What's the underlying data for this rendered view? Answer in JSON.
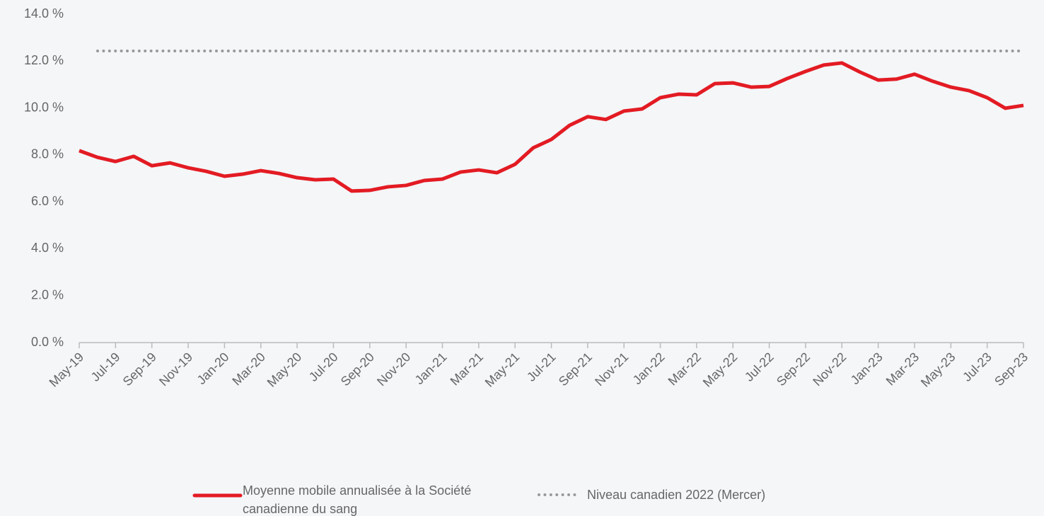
{
  "chart_data": {
    "type": "line",
    "categories": [
      "May-19",
      null,
      "Jul-19",
      null,
      "Sep-19",
      null,
      "Nov-19",
      null,
      "Jan-20",
      null,
      "Mar-20",
      null,
      "May-20",
      null,
      "Jul-20",
      null,
      "Sep-20",
      null,
      "Nov-20",
      null,
      "Jan-21",
      null,
      "Mar-21",
      null,
      "May-21",
      null,
      "Jul-21",
      null,
      "Sep-21",
      null,
      "Nov-21",
      null,
      "Jan-22",
      null,
      "Mar-22",
      null,
      "May-22",
      null,
      "Jul-22",
      null,
      "Sep-22",
      null,
      "Nov-22",
      null,
      "Jan-23",
      null,
      "Mar-23",
      null,
      "May-23",
      null,
      "Jul-23",
      null,
      "Sep-23"
    ],
    "series": [
      {
        "name": "Moyenne mobile annualisée à la Société canadienne du sang",
        "color": "#e31b23",
        "values": [
          8.18,
          7.9,
          7.72,
          7.94,
          7.54,
          7.66,
          7.45,
          7.3,
          7.09,
          7.18,
          7.33,
          7.21,
          7.03,
          6.94,
          6.97,
          6.46,
          6.49,
          6.64,
          6.7,
          6.91,
          6.97,
          7.27,
          7.36,
          7.24,
          7.6,
          8.3,
          8.66,
          9.26,
          9.63,
          9.51,
          9.87,
          9.96,
          10.44,
          10.59,
          10.56,
          11.04,
          11.07,
          10.89,
          10.92,
          11.26,
          11.56,
          11.83,
          11.92,
          11.53,
          11.19,
          11.23,
          11.44,
          11.14,
          10.89,
          10.74,
          10.44,
          9.99,
          10.11
        ]
      }
    ],
    "reference_line": {
      "name": "Niveau canadien 2022 (Mercer)",
      "color": "#999999",
      "value": 12.43,
      "style": "dotted"
    },
    "ylim": [
      0,
      14
    ],
    "yticks": [
      {
        "value": 0,
        "label": "0.0 %"
      },
      {
        "value": 2,
        "label": "2.0 %"
      },
      {
        "value": 4,
        "label": "4.0 %"
      },
      {
        "value": 6,
        "label": "6.0 %"
      },
      {
        "value": 8,
        "label": "8.0 %"
      },
      {
        "value": 10,
        "label": "10.0 %"
      },
      {
        "value": 12,
        "label": "12.0 %"
      },
      {
        "value": 14,
        "label": "14.0 %"
      }
    ],
    "grid": false,
    "legend": "bottom"
  }
}
